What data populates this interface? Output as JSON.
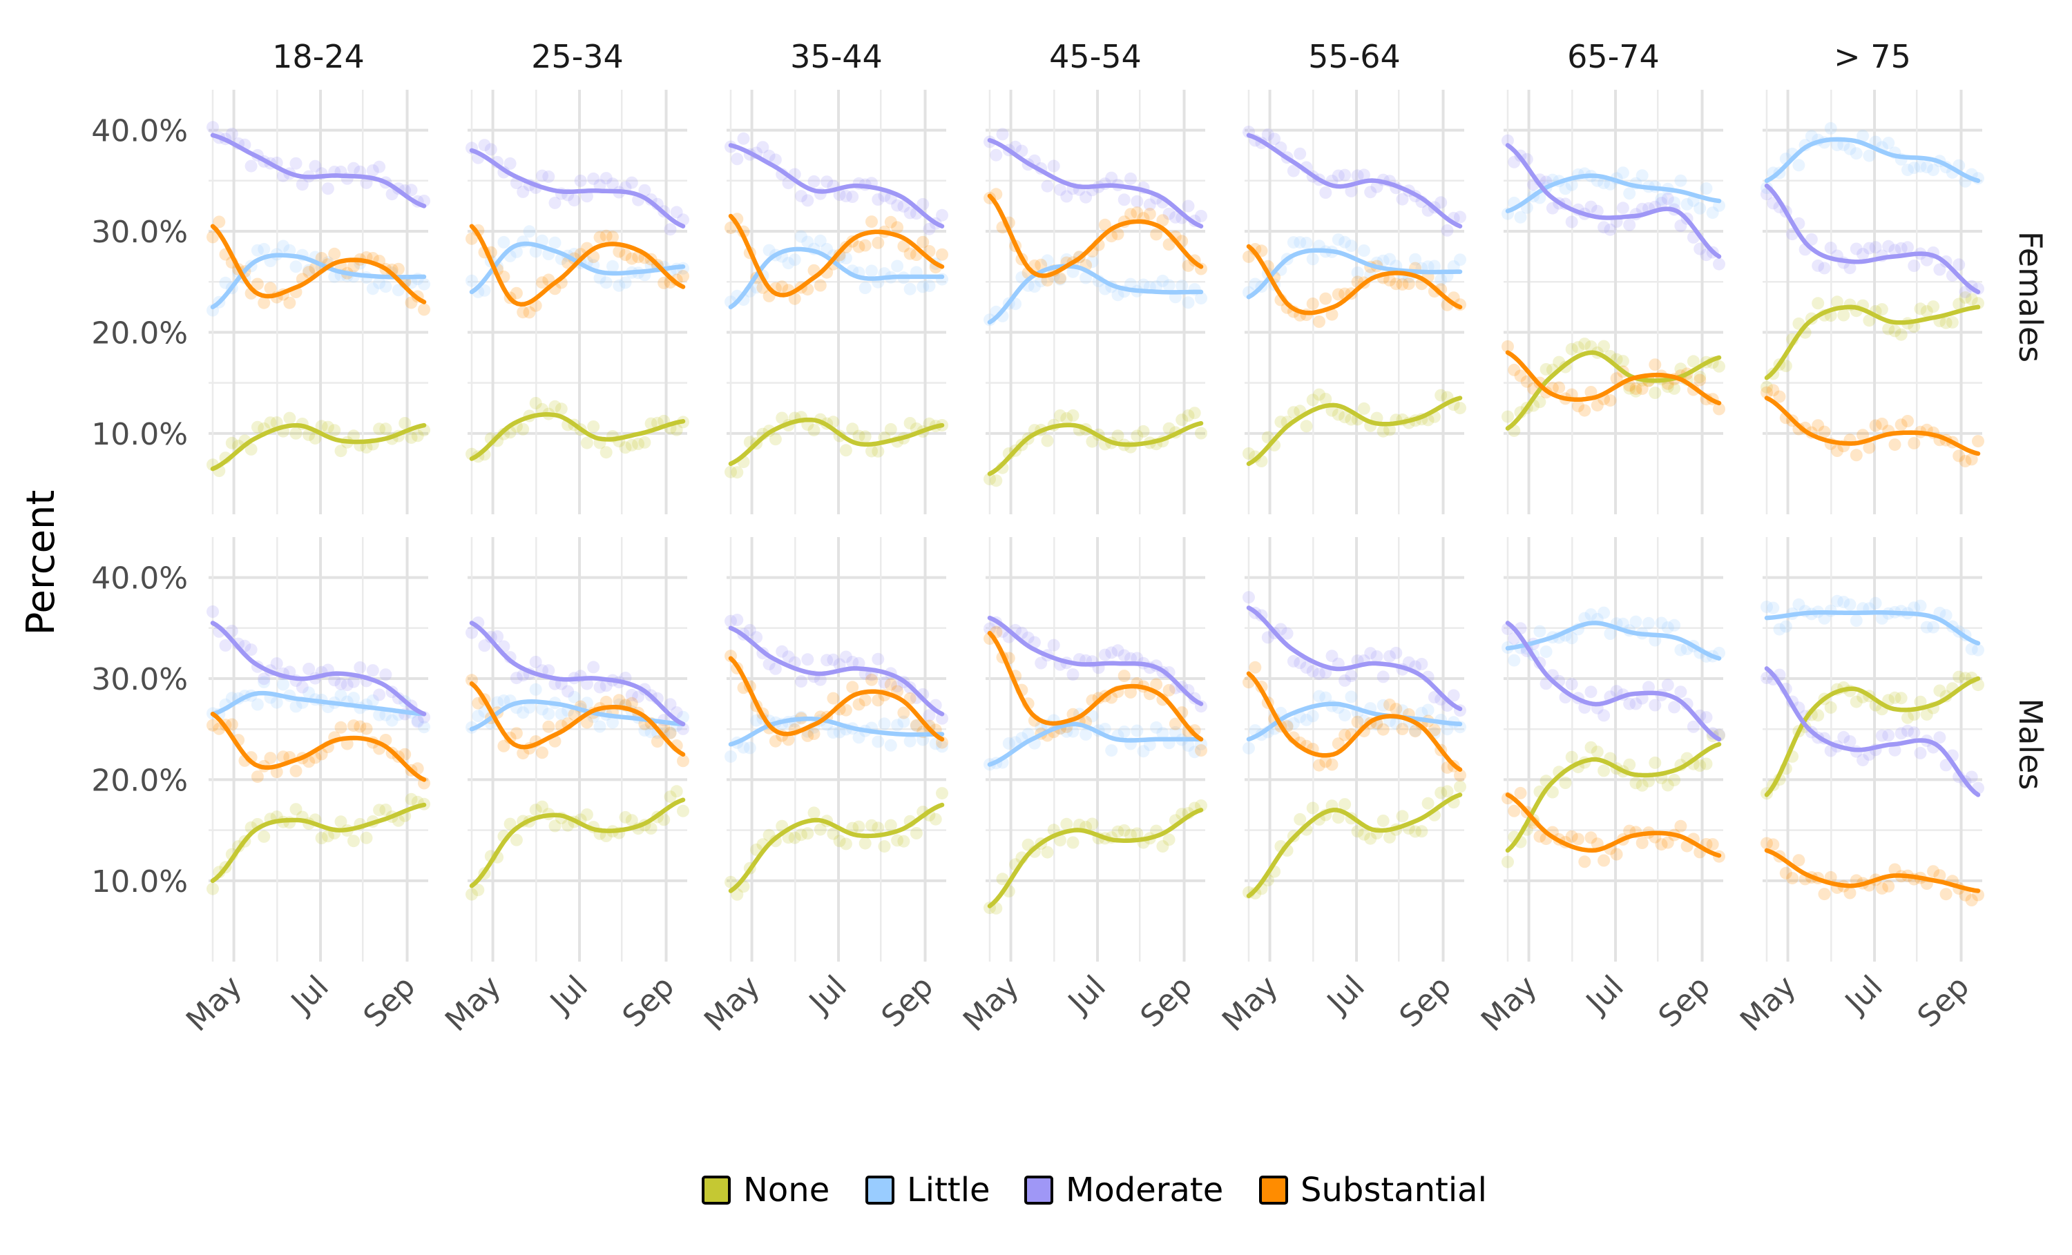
{
  "chart_data": {
    "type": "line",
    "description_kind": "faceted scatter with smoothed trend lines",
    "ylabel": "Percent",
    "xlabel": "",
    "ylim": [
      2,
      44
    ],
    "y_ticks": [
      10,
      20,
      30,
      40
    ],
    "y_tick_labels": [
      "10.0%",
      "20.0%",
      "30.0%",
      "40.0%"
    ],
    "x_ticks": [
      {
        "label": "May",
        "t": 0.1
      },
      {
        "label": "Jul",
        "t": 0.51
      },
      {
        "label": "Sep",
        "t": 0.92
      }
    ],
    "x_range_months": "Apr - Sep",
    "legend": {
      "position": "bottom",
      "entries": [
        {
          "name": "None",
          "color": "#c5c833"
        },
        {
          "name": "Little",
          "color": "#99ccff"
        },
        {
          "name": "Moderate",
          "color": "#9f97f6"
        },
        {
          "name": "Substantial",
          "color": "#ff8c00"
        }
      ]
    },
    "columns": [
      "18-24",
      "25-34",
      "35-44",
      "45-54",
      "55-64",
      "65-74",
      "> 75"
    ],
    "rows": [
      "Females",
      "Males"
    ],
    "curve_t": [
      0.0,
      0.2,
      0.4,
      0.6,
      0.8,
      1.0
    ],
    "panels": [
      {
        "row": "Females",
        "column": "18-24",
        "series": {
          "None": [
            6.5,
            9.5,
            10.8,
            9.3,
            9.4,
            10.8
          ],
          "Little": [
            22.5,
            27.0,
            27.5,
            26.0,
            25.5,
            25.5
          ],
          "Moderate": [
            39.5,
            37.5,
            35.5,
            35.5,
            35.0,
            32.5
          ],
          "Substantial": [
            30.5,
            24.0,
            24.5,
            27.0,
            26.5,
            23.0
          ]
        }
      },
      {
        "row": "Females",
        "column": "25-34",
        "series": {
          "None": [
            7.5,
            11.0,
            11.8,
            9.5,
            10.0,
            11.2
          ],
          "Little": [
            24.0,
            28.5,
            28.0,
            26.0,
            26.0,
            26.5
          ],
          "Moderate": [
            38.0,
            35.5,
            34.0,
            34.0,
            33.5,
            30.5
          ],
          "Substantial": [
            30.5,
            23.0,
            25.0,
            28.5,
            28.0,
            24.5
          ]
        }
      },
      {
        "row": "Females",
        "column": "35-44",
        "series": {
          "None": [
            7.0,
            10.3,
            11.3,
            9.0,
            9.5,
            10.8
          ],
          "Little": [
            22.5,
            27.5,
            28.0,
            25.5,
            25.5,
            25.5
          ],
          "Moderate": [
            38.5,
            36.5,
            34.0,
            34.5,
            33.5,
            30.5
          ],
          "Substantial": [
            31.5,
            24.0,
            25.5,
            29.5,
            29.5,
            26.5
          ]
        }
      },
      {
        "row": "Females",
        "column": "45-54",
        "series": {
          "None": [
            6.0,
            9.8,
            10.8,
            9.0,
            9.3,
            11.0
          ],
          "Little": [
            21.0,
            25.5,
            26.5,
            24.5,
            24.0,
            24.0
          ],
          "Moderate": [
            39.0,
            36.5,
            34.5,
            34.5,
            33.5,
            30.5
          ],
          "Substantial": [
            33.5,
            26.0,
            27.0,
            30.5,
            30.5,
            26.5
          ]
        }
      },
      {
        "row": "Females",
        "column": "55-64",
        "series": {
          "None": [
            7.0,
            11.0,
            12.8,
            11.0,
            11.5,
            13.5
          ],
          "Little": [
            23.5,
            27.5,
            28.0,
            26.5,
            26.0,
            26.0
          ],
          "Moderate": [
            39.5,
            37.0,
            34.5,
            35.0,
            33.5,
            30.5
          ],
          "Substantial": [
            28.5,
            22.5,
            22.5,
            25.5,
            25.5,
            22.5
          ]
        }
      },
      {
        "row": "Females",
        "column": "65-74",
        "series": {
          "None": [
            10.5,
            15.5,
            18.0,
            15.5,
            15.5,
            17.5
          ],
          "Little": [
            32.0,
            34.5,
            35.5,
            34.5,
            34.0,
            33.0
          ],
          "Moderate": [
            38.5,
            33.5,
            31.5,
            31.5,
            32.0,
            27.5
          ],
          "Substantial": [
            18.0,
            14.0,
            13.5,
            15.5,
            15.5,
            13.0
          ]
        }
      },
      {
        "row": "Females",
        "column": "> 75",
        "series": {
          "None": [
            15.5,
            21.0,
            22.5,
            21.0,
            21.5,
            22.5
          ],
          "Little": [
            35.0,
            38.5,
            39.0,
            37.5,
            37.0,
            35.0
          ],
          "Moderate": [
            34.5,
            28.5,
            27.0,
            27.5,
            27.5,
            24.0
          ],
          "Substantial": [
            13.5,
            10.0,
            9.0,
            10.0,
            9.8,
            8.0
          ]
        }
      },
      {
        "row": "Males",
        "column": "18-24",
        "series": {
          "None": [
            10.0,
            15.0,
            16.0,
            15.0,
            16.0,
            17.5
          ],
          "Little": [
            26.5,
            28.5,
            28.0,
            27.5,
            27.0,
            26.5
          ],
          "Moderate": [
            35.5,
            31.5,
            30.0,
            30.5,
            29.5,
            26.5
          ],
          "Substantial": [
            26.5,
            21.5,
            22.0,
            24.0,
            23.5,
            20.0
          ]
        }
      },
      {
        "row": "Males",
        "column": "25-34",
        "series": {
          "None": [
            9.5,
            15.0,
            16.5,
            15.0,
            15.5,
            18.0
          ],
          "Little": [
            25.0,
            27.5,
            27.5,
            26.5,
            26.0,
            25.5
          ],
          "Moderate": [
            35.5,
            31.5,
            30.0,
            30.0,
            29.0,
            25.5
          ],
          "Substantial": [
            29.5,
            23.5,
            24.5,
            27.0,
            26.5,
            22.5
          ]
        }
      },
      {
        "row": "Males",
        "column": "35-44",
        "series": {
          "None": [
            9.0,
            14.0,
            16.0,
            14.5,
            15.0,
            17.5
          ],
          "Little": [
            23.5,
            25.5,
            26.0,
            25.0,
            24.5,
            24.5
          ],
          "Moderate": [
            35.0,
            32.0,
            30.5,
            31.0,
            30.0,
            26.5
          ],
          "Substantial": [
            32.0,
            25.0,
            25.5,
            28.5,
            28.0,
            24.0
          ]
        }
      },
      {
        "row": "Males",
        "column": "45-54",
        "series": {
          "None": [
            7.5,
            13.0,
            15.0,
            14.0,
            14.5,
            17.0
          ],
          "Little": [
            21.5,
            24.0,
            25.5,
            24.0,
            24.0,
            24.0
          ],
          "Moderate": [
            36.0,
            33.0,
            31.5,
            31.5,
            31.0,
            27.5
          ],
          "Substantial": [
            34.5,
            26.5,
            26.0,
            29.0,
            28.5,
            24.0
          ]
        }
      },
      {
        "row": "Males",
        "column": "55-64",
        "series": {
          "None": [
            8.5,
            14.0,
            17.0,
            15.0,
            16.0,
            18.5
          ],
          "Little": [
            24.0,
            26.5,
            27.5,
            26.5,
            26.0,
            25.5
          ],
          "Moderate": [
            37.0,
            33.0,
            31.0,
            31.5,
            30.5,
            27.0
          ],
          "Substantial": [
            30.5,
            24.0,
            22.5,
            26.0,
            25.5,
            21.0
          ]
        }
      },
      {
        "row": "Males",
        "column": "65-74",
        "series": {
          "None": [
            13.0,
            19.5,
            22.0,
            20.5,
            21.0,
            23.5
          ],
          "Little": [
            33.0,
            34.0,
            35.5,
            34.5,
            34.0,
            32.0
          ],
          "Moderate": [
            35.5,
            30.0,
            27.5,
            28.5,
            28.0,
            24.0
          ],
          "Substantial": [
            18.5,
            14.5,
            13.0,
            14.5,
            14.5,
            12.5
          ]
        }
      },
      {
        "row": "Males",
        "column": "> 75",
        "series": {
          "None": [
            18.5,
            26.5,
            29.0,
            27.0,
            27.5,
            30.0
          ],
          "Little": [
            36.0,
            36.5,
            36.5,
            36.5,
            36.0,
            33.5
          ],
          "Moderate": [
            31.0,
            25.0,
            23.0,
            23.5,
            23.5,
            18.5
          ],
          "Substantial": [
            13.0,
            10.5,
            9.5,
            10.5,
            10.0,
            9.0
          ]
        }
      }
    ]
  }
}
